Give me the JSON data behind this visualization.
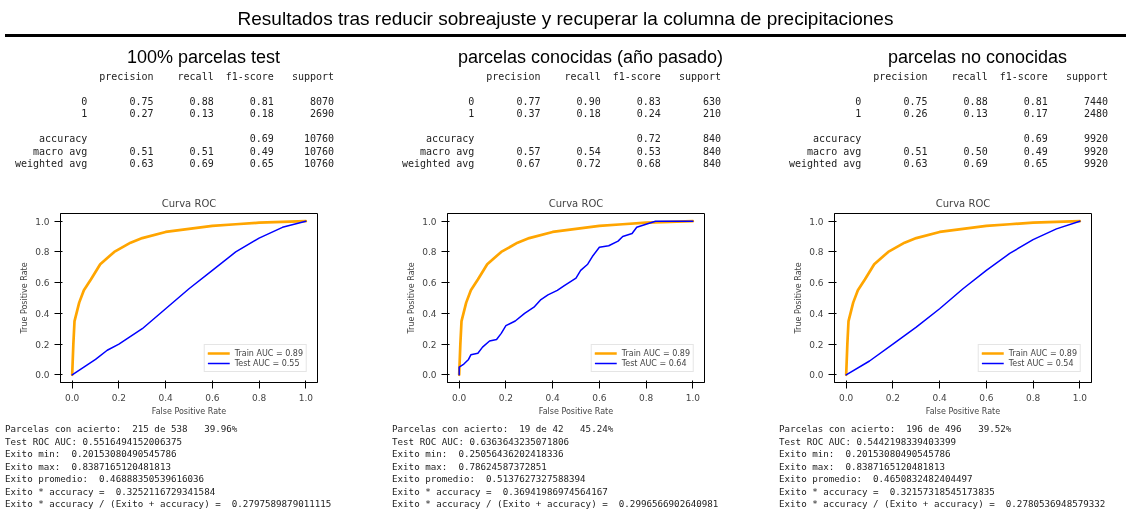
{
  "chart_data": [
    {
      "type": "other",
      "title": "Resultados tras reducir sobreajuste y recuperar la columna de precipitaciones"
    },
    {
      "type": "other",
      "title": "100% parcelas test",
      "annotations": [
        "              precision    recall  f1-score   support",
        "           0       0.75      0.88      0.81      8070",
        "           1       0.27      0.13      0.18      2690",
        "    accuracy                           0.69     10760",
        "   macro avg       0.51      0.51      0.49     10760",
        "weighted avg       0.63      0.69      0.65     10760"
      ]
    },
    {
      "type": "other",
      "title": "parcelas conocidas (año pasado)",
      "annotations": [
        "              precision    recall  f1-score   support",
        "           0       0.77      0.90      0.83       630",
        "           1       0.37      0.18      0.24       210",
        "    accuracy                           0.72       840",
        "   macro avg       0.57      0.54      0.53       840",
        "weighted avg       0.67      0.72      0.68       840"
      ]
    },
    {
      "type": "other",
      "title": "parcelas no conocidas",
      "annotations": [
        "              precision    recall  f1-score   support",
        "           0       0.75      0.88      0.81      7440",
        "           1       0.26      0.13      0.17      2480",
        "    accuracy                           0.69      9920",
        "   macro avg       0.51      0.50      0.49      9920",
        "weighted avg       0.63      0.69      0.65      9920"
      ]
    },
    {
      "type": "line",
      "title": "Curva ROC",
      "xlabel": "False Positive Rate",
      "ylabel": "True Positive Rate",
      "xlim": [
        -0.05,
        1.05
      ],
      "ylim": [
        -0.05,
        1.05
      ],
      "xticks": [
        {
          "value": 0,
          "label": "0.0"
        },
        {
          "value": 0.2,
          "label": "0.2"
        },
        {
          "value": 0.4,
          "label": "0.4"
        },
        {
          "value": 0.6,
          "label": "0.6"
        },
        {
          "value": 0.8,
          "label": "0.8"
        },
        {
          "value": 1,
          "label": "1.0"
        }
      ],
      "yticks": [
        {
          "value": 0,
          "label": "0.0"
        },
        {
          "value": 0.2,
          "label": "0.2"
        },
        {
          "value": 0.4,
          "label": "0.4"
        },
        {
          "value": 0.6,
          "label": "0.6"
        },
        {
          "value": 0.8,
          "label": "0.8"
        },
        {
          "value": 1,
          "label": "1.0"
        }
      ],
      "legend": "bottom right",
      "grid": false,
      "series": [
        {
          "name": "Train AUC = 0.89",
          "color": "#ffa500",
          "x": [
            0,
            0.005,
            0.01,
            0.03,
            0.05,
            0.08,
            0.12,
            0.18,
            0.25,
            0.3,
            0.4,
            0.5,
            0.6,
            0.7,
            0.8,
            0.9,
            1
          ],
          "values": [
            0,
            0.2,
            0.35,
            0.47,
            0.55,
            0.62,
            0.72,
            0.8,
            0.86,
            0.89,
            0.93,
            0.95,
            0.97,
            0.98,
            0.99,
            0.995,
            1
          ]
        },
        {
          "name": "Test AUC = 0.55",
          "color": "#0000ff",
          "x": [
            0,
            0.05,
            0.1,
            0.15,
            0.2,
            0.3,
            0.4,
            0.5,
            0.6,
            0.7,
            0.8,
            0.9,
            1
          ],
          "values": [
            0,
            0.05,
            0.1,
            0.16,
            0.2,
            0.3,
            0.43,
            0.56,
            0.68,
            0.8,
            0.89,
            0.96,
            1
          ]
        }
      ],
      "annotations": [
        "Parcelas con acierto:  215 de 538   39.96%",
        "Test ROC AUC: 0.5516494152006375",
        "Exito min:  0.20153080490545786",
        "Exito max:  0.8387165120481813",
        "Exito promedio:  0.46888350539616036",
        "Exito * accuracy =  0.3252116729341584",
        "Exito * accuracy / (Exito + accuracy) =  0.2797589879011115"
      ]
    },
    {
      "type": "line",
      "title": "Curva ROC",
      "xlabel": "False Positive Rate",
      "ylabel": "True Positive Rate",
      "xlim": [
        -0.05,
        1.05
      ],
      "ylim": [
        -0.05,
        1.05
      ],
      "xticks": [
        {
          "value": 0,
          "label": "0.0"
        },
        {
          "value": 0.2,
          "label": "0.2"
        },
        {
          "value": 0.4,
          "label": "0.4"
        },
        {
          "value": 0.6,
          "label": "0.6"
        },
        {
          "value": 0.8,
          "label": "0.8"
        },
        {
          "value": 1,
          "label": "1.0"
        }
      ],
      "yticks": [
        {
          "value": 0,
          "label": "0.0"
        },
        {
          "value": 0.2,
          "label": "0.2"
        },
        {
          "value": 0.4,
          "label": "0.4"
        },
        {
          "value": 0.6,
          "label": "0.6"
        },
        {
          "value": 0.8,
          "label": "0.8"
        },
        {
          "value": 1,
          "label": "1.0"
        }
      ],
      "legend": "bottom right",
      "grid": false,
      "series": [
        {
          "name": "Train AUC = 0.89",
          "color": "#ffa500",
          "x": [
            0,
            0.005,
            0.01,
            0.03,
            0.05,
            0.08,
            0.12,
            0.18,
            0.25,
            0.3,
            0.4,
            0.5,
            0.6,
            0.7,
            0.8,
            0.9,
            1
          ],
          "values": [
            0,
            0.2,
            0.35,
            0.47,
            0.55,
            0.62,
            0.72,
            0.8,
            0.86,
            0.89,
            0.93,
            0.95,
            0.97,
            0.98,
            0.99,
            0.995,
            1
          ]
        },
        {
          "name": "Test AUC = 0.64",
          "color": "#0000ff",
          "x": [
            0,
            0,
            0.02,
            0.04,
            0.05,
            0.08,
            0.1,
            0.13,
            0.16,
            0.18,
            0.2,
            0.24,
            0.28,
            0.32,
            0.35,
            0.38,
            0.42,
            0.45,
            0.5,
            0.52,
            0.55,
            0.57,
            0.6,
            0.64,
            0.68,
            0.7,
            0.74,
            0.76,
            0.8,
            0.84,
            1
          ],
          "values": [
            0,
            0.05,
            0.07,
            0.1,
            0.13,
            0.14,
            0.18,
            0.22,
            0.23,
            0.27,
            0.32,
            0.35,
            0.4,
            0.44,
            0.49,
            0.52,
            0.55,
            0.58,
            0.63,
            0.68,
            0.72,
            0.77,
            0.83,
            0.84,
            0.87,
            0.9,
            0.92,
            0.96,
            0.98,
            1,
            1
          ]
        }
      ],
      "annotations": [
        "Parcelas con acierto:  19 de 42   45.24%",
        "Test ROC AUC: 0.6363643235071806",
        "Exito min:  0.25056436202418336",
        "Exito max:  0.78624587372851",
        "Exito promedio:  0.5137627327588394",
        "Exito * accuracy =  0.36941986974564167",
        "Exito * accuracy / (Exito + accuracy) =  0.2996566902640981"
      ]
    },
    {
      "type": "line",
      "title": "Curva ROC",
      "xlabel": "False Positive Rate",
      "ylabel": "True Positive Rate",
      "xlim": [
        -0.05,
        1.05
      ],
      "ylim": [
        -0.05,
        1.05
      ],
      "xticks": [
        {
          "value": 0,
          "label": "0.0"
        },
        {
          "value": 0.2,
          "label": "0.2"
        },
        {
          "value": 0.4,
          "label": "0.4"
        },
        {
          "value": 0.6,
          "label": "0.6"
        },
        {
          "value": 0.8,
          "label": "0.8"
        },
        {
          "value": 1,
          "label": "1.0"
        }
      ],
      "yticks": [
        {
          "value": 0,
          "label": "0.0"
        },
        {
          "value": 0.2,
          "label": "0.2"
        },
        {
          "value": 0.4,
          "label": "0.4"
        },
        {
          "value": 0.6,
          "label": "0.6"
        },
        {
          "value": 0.8,
          "label": "0.8"
        },
        {
          "value": 1,
          "label": "1.0"
        }
      ],
      "legend": "bottom right",
      "grid": false,
      "series": [
        {
          "name": "Train AUC = 0.89",
          "color": "#ffa500",
          "x": [
            0,
            0.005,
            0.01,
            0.03,
            0.05,
            0.08,
            0.12,
            0.18,
            0.25,
            0.3,
            0.4,
            0.5,
            0.6,
            0.7,
            0.8,
            0.9,
            1
          ],
          "values": [
            0,
            0.2,
            0.35,
            0.47,
            0.55,
            0.62,
            0.72,
            0.8,
            0.86,
            0.89,
            0.93,
            0.95,
            0.97,
            0.98,
            0.99,
            0.995,
            1
          ]
        },
        {
          "name": "Test AUC = 0.54",
          "color": "#0000ff",
          "x": [
            0,
            0.1,
            0.2,
            0.3,
            0.4,
            0.5,
            0.6,
            0.7,
            0.8,
            0.9,
            1
          ],
          "values": [
            0,
            0.09,
            0.2,
            0.31,
            0.43,
            0.56,
            0.68,
            0.79,
            0.88,
            0.95,
            1
          ]
        }
      ],
      "annotations": [
        "Parcelas con acierto:  196 de 496   39.52%",
        "Test ROC AUC: 0.5442198339403399",
        "Exito min:  0.20153080490545786",
        "Exito max:  0.8387165120481813",
        "Exito promedio:  0.4650832482404497",
        "Exito * accuracy =  0.32157318545173835",
        "Exito * accuracy / (Exito + accuracy) =  0.2780536948579332"
      ]
    }
  ]
}
